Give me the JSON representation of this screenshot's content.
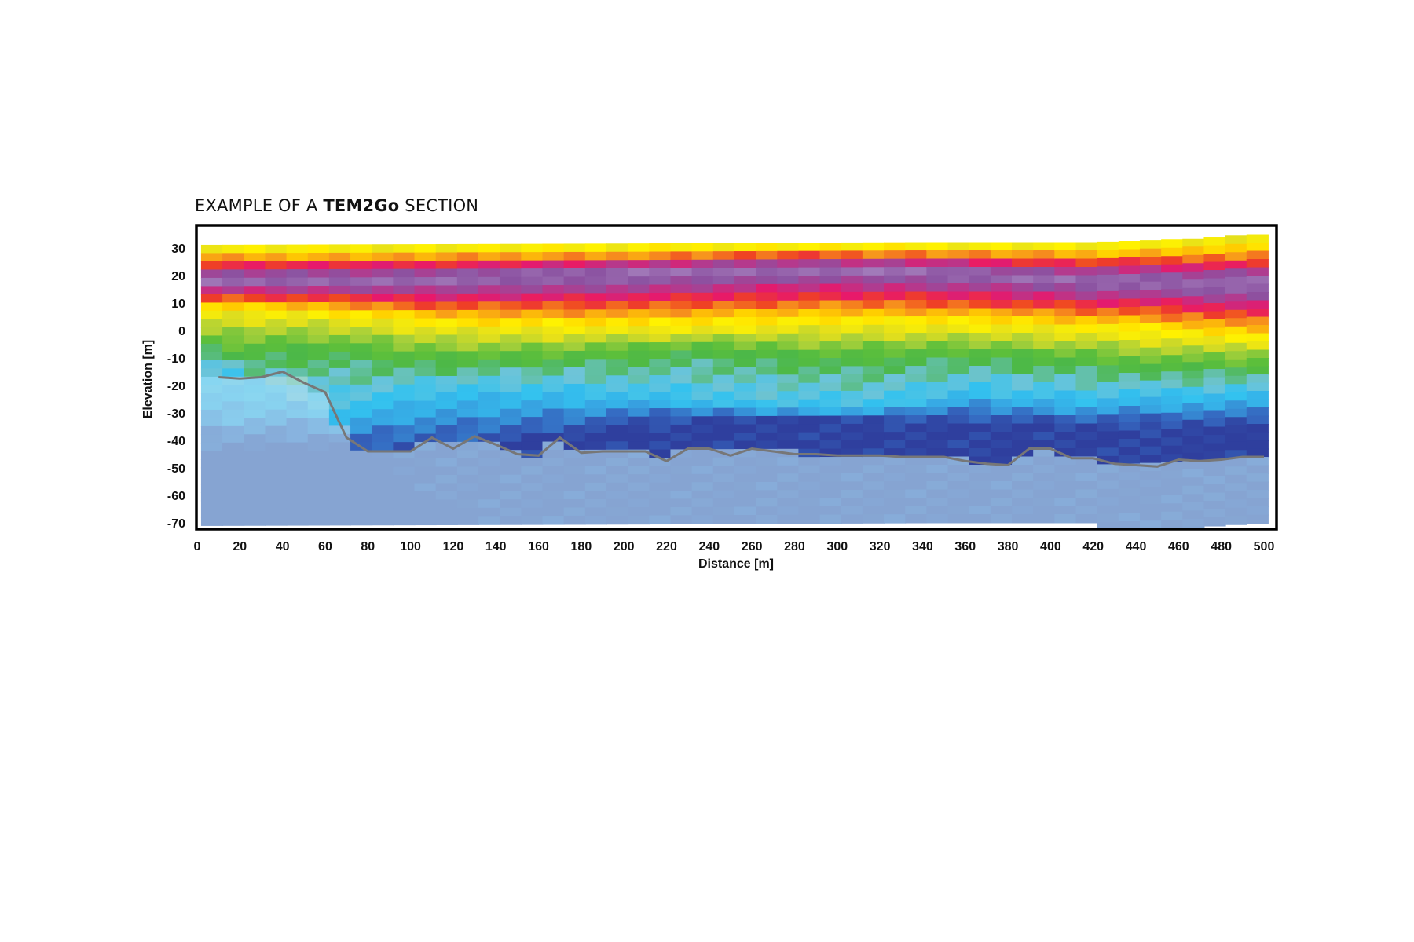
{
  "title": {
    "prefix": "EXAMPLE OF A ",
    "bold": "TEM2Go",
    "suffix": " SECTION"
  },
  "chart_data": {
    "type": "heatmap",
    "title": "EXAMPLE OF A TEM2Go SECTION",
    "xlabel": "Distance [m]",
    "ylabel": "Elevation [m]",
    "xlim": [
      0,
      505
    ],
    "ylim": [
      -71,
      40
    ],
    "x_ticks": [
      0,
      20,
      40,
      60,
      80,
      100,
      120,
      140,
      160,
      180,
      200,
      220,
      240,
      260,
      280,
      300,
      320,
      340,
      360,
      380,
      400,
      420,
      440,
      460,
      480,
      500
    ],
    "y_ticks": [
      30,
      20,
      10,
      0,
      -10,
      -20,
      -30,
      -40,
      -50,
      -60,
      -70
    ],
    "grid": false,
    "depth_of_investigation_line": {
      "x": [
        10,
        20,
        30,
        40,
        50,
        60,
        70,
        80,
        90,
        100,
        110,
        120,
        130,
        140,
        150,
        160,
        170,
        180,
        190,
        200,
        210,
        220,
        230,
        240,
        250,
        260,
        270,
        280,
        290,
        300,
        310,
        320,
        330,
        340,
        350,
        360,
        370,
        380,
        390,
        400,
        410,
        420,
        430,
        440,
        450,
        460,
        470,
        480,
        490,
        500
      ],
      "y": [
        -17,
        -17.5,
        -17,
        -15,
        -19,
        -22.5,
        -39,
        -44,
        -44,
        -44,
        -39,
        -43,
        -38.5,
        -41.5,
        -45,
        -45.5,
        -39,
        -44.5,
        -44,
        -44,
        -44,
        -47.5,
        -43,
        -43,
        -45.5,
        -43,
        -44,
        -45,
        -45,
        -45.5,
        -45.5,
        -45.5,
        -46,
        -46,
        -46,
        -47.5,
        -48.5,
        -49,
        -43,
        -43,
        -46.5,
        -46.5,
        -48.5,
        -49,
        -49.5,
        -47,
        -47.5,
        -47,
        -46,
        -46
      ]
    },
    "color_scale": [
      "#2f3f9e",
      "#3568c0",
      "#37a8e4",
      "#33c2ef",
      "#6ec4d8",
      "#4cb848",
      "#5cbf3b",
      "#a8d03a",
      "#e6e01a",
      "#fff200",
      "#ffcc00",
      "#f7941d",
      "#ef4123",
      "#e8186b",
      "#b33a8e",
      "#8b52a1",
      "#9a6bb0",
      "#a98bc3"
    ],
    "line_color": "#777777"
  }
}
